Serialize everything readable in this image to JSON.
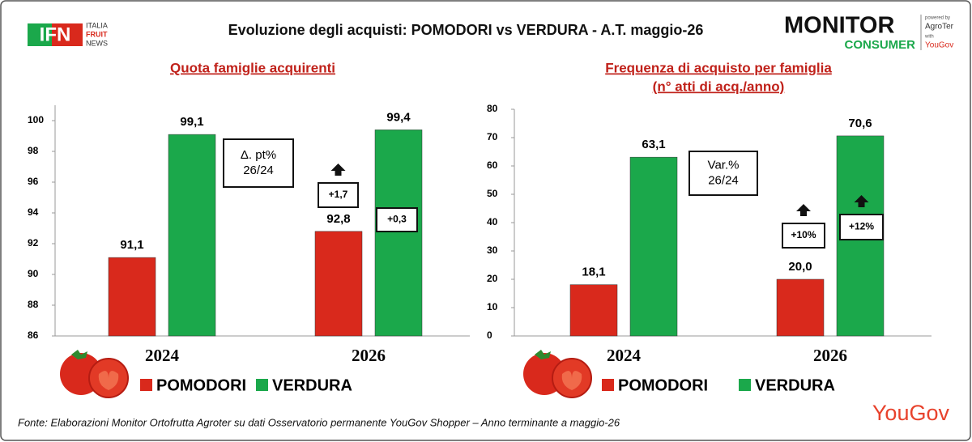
{
  "header": {
    "title": "Evoluzione degli acquisti: POMODORI vs VERDURA  - A.T. maggio-26",
    "logo_left": {
      "mark": "IFN",
      "lines": [
        "ITALIA",
        "FRUIT",
        "NEWS"
      ]
    },
    "logo_right": {
      "main": "MONITOR",
      "sub": "CONSUMER",
      "lines": [
        "powered by",
        "AgroTer",
        "with",
        "YouGov"
      ]
    }
  },
  "chart_data": [
    {
      "type": "bar",
      "title": [
        "Quota famiglie acquirenti"
      ],
      "categories": [
        "2024",
        "2026"
      ],
      "series": [
        {
          "name": "POMODORI",
          "color": "#d9291c",
          "values": [
            91.1,
            92.8
          ],
          "value_labels": [
            "91,1",
            "92,8"
          ]
        },
        {
          "name": "VERDURA",
          "color": "#1ba84b",
          "values": [
            99.1,
            99.4
          ],
          "value_labels": [
            "99,1",
            "99,4"
          ]
        }
      ],
      "ylim": [
        86,
        101
      ],
      "yticks": [
        86,
        88,
        90,
        92,
        94,
        96,
        98,
        100
      ],
      "annotation": [
        "Δ. pt%",
        "26/24"
      ],
      "changes": [
        "+1,7",
        "+0,3"
      ]
    },
    {
      "type": "bar",
      "title": [
        "Frequenza di acquisto per famiglia",
        "(n° atti di acq./anno)"
      ],
      "categories": [
        "2024",
        "2026"
      ],
      "series": [
        {
          "name": "POMODORI",
          "color": "#d9291c",
          "values": [
            18.1,
            20.0
          ],
          "value_labels": [
            "18,1",
            "20,0"
          ]
        },
        {
          "name": "VERDURA",
          "color": "#1ba84b",
          "values": [
            63.1,
            70.6
          ],
          "value_labels": [
            "63,1",
            "70,6"
          ]
        }
      ],
      "ylim": [
        0,
        80
      ],
      "yticks": [
        0,
        10,
        20,
        30,
        40,
        50,
        60,
        70,
        80
      ],
      "annotation": [
        "Var.%",
        "26/24"
      ],
      "changes": [
        "+10%",
        "+12%"
      ]
    }
  ],
  "footer": {
    "source": "Fonte: Elaborazioni Monitor Ortofrutta Agroter su dati Osservatorio permanente YouGov Shopper  – Anno terminante a maggio-26",
    "brand": "YouGov"
  }
}
